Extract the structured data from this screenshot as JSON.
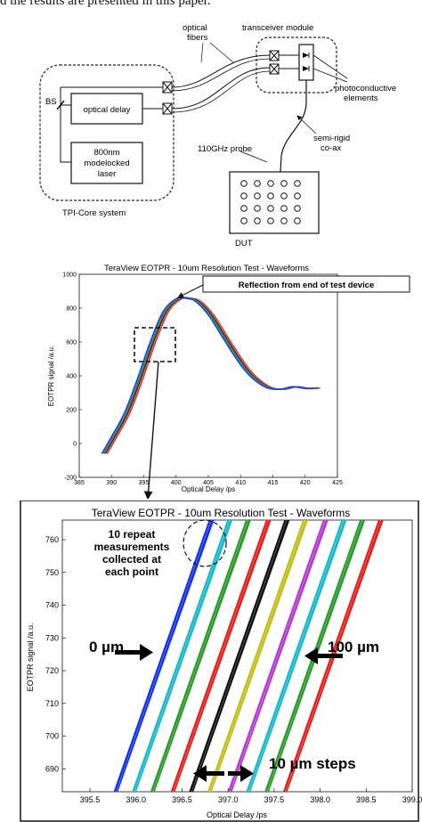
{
  "top_text": "d the results are presented in this paper.",
  "diagram": {
    "labels": {
      "optical_fibers_1": "optical",
      "optical_fibers_2": "fibers",
      "transceiver_module": "transceiver module",
      "photoconductive_1": "photoconductive",
      "photoconductive_2": "elements",
      "bs": "BS",
      "optical_delay": "optical delay",
      "laser_1": "800nm",
      "laser_2": "modelocked",
      "laser_3": "laser",
      "semi_rigid_1": "semi-rigid",
      "semi_rigid_2": "co-ax",
      "probe": "110GHz probe",
      "tpi_core": "TPI-Core system",
      "dut": "DUT"
    }
  },
  "chart_data": [
    {
      "type": "line",
      "title": "TeraView EOTPR - 10um Resolution Test - Waveforms",
      "xlabel": "Optical Delay /ps",
      "ylabel": "EOTPR signal /a.u.",
      "xlim": [
        385,
        425
      ],
      "ylim": [
        -200,
        1000
      ],
      "xticks": [
        385,
        390,
        395,
        400,
        405,
        410,
        415,
        420,
        425
      ],
      "yticks": [
        -200,
        0,
        200,
        400,
        600,
        800,
        1000
      ],
      "annotation": "Reflection from end of test device",
      "series_colors": [
        "#1f3fe0",
        "#17a9c2",
        "#2f9a2f",
        "#d42020",
        "#111111",
        "#b7b51e",
        "#b52fc4",
        "#e03c25"
      ],
      "waveform": {
        "x": [
          388.5,
          390,
          392,
          394,
          396,
          398,
          400,
          401.5,
          403,
          405,
          407,
          409,
          410.5,
          412,
          414,
          416,
          418,
          420,
          421.5
        ],
        "y": [
          -60,
          40,
          180,
          380,
          600,
          780,
          855,
          858,
          840,
          760,
          640,
          520,
          440,
          380,
          330,
          320,
          335,
          325,
          328
        ]
      },
      "shift_step_ps": 0.12
    },
    {
      "type": "line",
      "title": "TeraView EOTPR - 10um Resolution Test - Waveforms",
      "xlabel": "Optical Delay /ps",
      "ylabel": "EOTPR signal /a.u.",
      "xlim": [
        395.2,
        399.0
      ],
      "ylim": [
        683,
        766
      ],
      "xticks": [
        395.5,
        396.0,
        396.5,
        397.0,
        397.5,
        398.0,
        398.5,
        399.0
      ],
      "xtick_labels": [
        "395.5",
        "396.0",
        "396.5",
        "397.0",
        "397.5",
        "398.0",
        "398.5",
        "399.0"
      ],
      "yticks": [
        690,
        700,
        710,
        720,
        730,
        740,
        750,
        760
      ],
      "series": [
        {
          "color": "#1533e6",
          "values": [
            [
              395.78,
              683
            ],
            [
              396.82,
              766
            ]
          ]
        },
        {
          "color": "#19b8cc",
          "values": [
            [
              395.98,
              683
            ],
            [
              397.02,
              766
            ]
          ]
        },
        {
          "color": "#2a9b2a",
          "values": [
            [
              396.18,
              683
            ],
            [
              397.22,
              766
            ]
          ]
        },
        {
          "color": "#e3201c",
          "values": [
            [
              396.4,
              683
            ],
            [
              397.44,
              766
            ]
          ]
        },
        {
          "color": "#111111",
          "values": [
            [
              396.6,
              683
            ],
            [
              397.64,
              766
            ]
          ]
        },
        {
          "color": "#c2bf1c",
          "values": [
            [
              396.8,
              683
            ],
            [
              397.84,
              766
            ]
          ]
        },
        {
          "color": "#b43ad0",
          "values": [
            [
              397.02,
              683
            ],
            [
              398.06,
              766
            ]
          ]
        },
        {
          "color": "#19b8cc",
          "values": [
            [
              397.22,
              683
            ],
            [
              398.26,
              766
            ]
          ]
        },
        {
          "color": "#2a9b2a",
          "values": [
            [
              397.42,
              683
            ],
            [
              398.46,
              766
            ]
          ]
        },
        {
          "color": "#e3201c",
          "values": [
            [
              397.62,
              683
            ],
            [
              398.66,
              766
            ]
          ]
        }
      ],
      "annotations": {
        "repeat_1": "10 repeat",
        "repeat_2": "measurements",
        "repeat_3": "collected at",
        "repeat_4": "each point",
        "zero": "0 µm",
        "hundred": "100 µm",
        "steps": "10 µm steps"
      }
    }
  ]
}
